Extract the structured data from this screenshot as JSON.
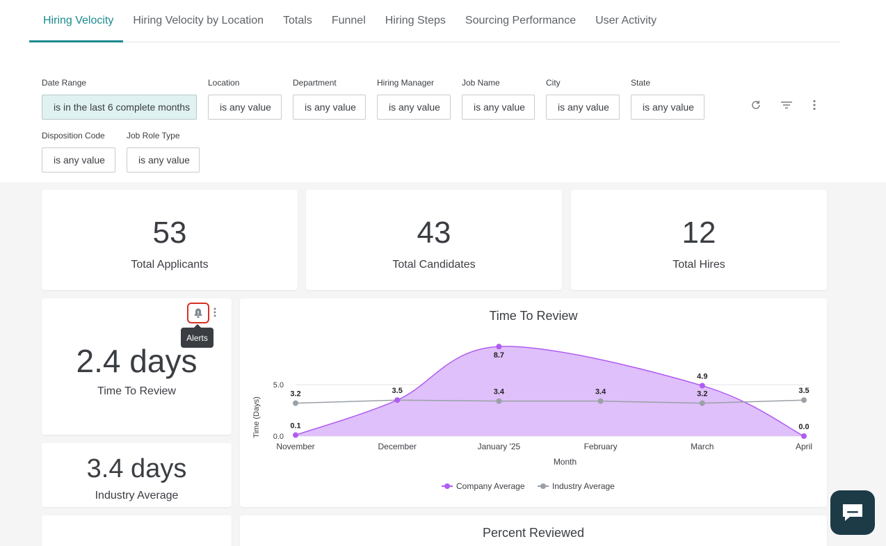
{
  "tabs": [
    "Hiring Velocity",
    "Hiring Velocity by Location",
    "Totals",
    "Funnel",
    "Hiring Steps",
    "Sourcing Performance",
    "User Activity"
  ],
  "filters": {
    "date_range": {
      "label": "Date Range",
      "value": "is in the last 6 complete months"
    },
    "location": {
      "label": "Location",
      "value": "is any value"
    },
    "department": {
      "label": "Department",
      "value": "is any value"
    },
    "hiring_manager": {
      "label": "Hiring Manager",
      "value": "is any value"
    },
    "job_name": {
      "label": "Job Name",
      "value": "is any value"
    },
    "city": {
      "label": "City",
      "value": "is any value"
    },
    "state": {
      "label": "State",
      "value": "is any value"
    },
    "disposition_code": {
      "label": "Disposition Code",
      "value": "is any value"
    },
    "job_role_type": {
      "label": "Job Role Type",
      "value": "is any value"
    }
  },
  "kpis": {
    "applicants": {
      "value": "53",
      "label": "Total Applicants"
    },
    "candidates": {
      "value": "43",
      "label": "Total Candidates"
    },
    "hires": {
      "value": "12",
      "label": "Total Hires"
    },
    "time_to_review": {
      "value": "2.4 days",
      "label": "Time To Review"
    },
    "industry_average": {
      "value": "3.4 days",
      "label": "Industry Average"
    }
  },
  "tooltip": {
    "text": "Alerts"
  },
  "percent_reviewed": {
    "title": "Percent Reviewed"
  },
  "colors": {
    "accent": "#1a8a8f",
    "company": "#b05cf2",
    "company_fill": "#dcb9fa",
    "industry": "#9aa0a6",
    "chat": "#1d3b47"
  },
  "chart_data": {
    "type": "area",
    "title": "Time To Review",
    "xlabel": "Month",
    "ylabel": "Time (Days)",
    "categories": [
      "November",
      "December",
      "January '25",
      "February",
      "March",
      "April"
    ],
    "y_ticks": [
      "0.0",
      "5.0"
    ],
    "ylim": [
      0,
      9
    ],
    "grid": true,
    "legend": "bottom",
    "series": [
      {
        "name": "Company Average",
        "values": [
          0.1,
          3.5,
          8.7,
          null,
          4.9,
          0.0
        ],
        "labels": [
          "0.1",
          "3.5",
          "8.7",
          "",
          "4.9",
          "0.0"
        ]
      },
      {
        "name": "Industry Average",
        "values": [
          3.2,
          3.5,
          3.4,
          3.4,
          3.2,
          3.5
        ],
        "labels": [
          "3.2",
          "",
          "3.4",
          "3.4",
          "3.2",
          "3.5"
        ]
      }
    ]
  }
}
